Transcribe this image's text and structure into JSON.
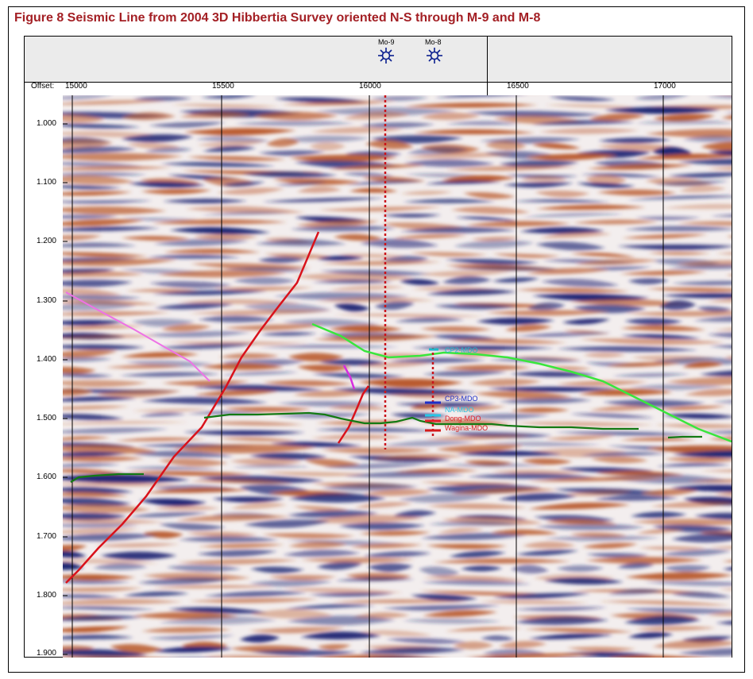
{
  "title": "Figure 8 Seismic Line from 2004 3D Hibbertia Survey oriented N-S through M-9 and M-8",
  "axis": {
    "offset_label": "Offset:",
    "x_ticks": [
      "15000",
      "15500",
      "16000",
      "16500",
      "17000"
    ],
    "y_ticks": [
      "1.000",
      "1.100",
      "1.200",
      "1.300",
      "1.400",
      "1.500",
      "1.600",
      "1.700",
      "1.800",
      "1.900"
    ]
  },
  "wells": [
    {
      "name": "Mo-9",
      "icon": "well-symbol-icon"
    },
    {
      "name": "Mo-8",
      "icon": "well-symbol-icon"
    }
  ],
  "markers": [
    {
      "label": "CP2-MDO",
      "color": "#1fb6c9"
    },
    {
      "label": "CP3-MDO",
      "color": "#1d2fc9"
    },
    {
      "label": "NA-MDO",
      "color": "#27c6e6"
    },
    {
      "label": "Dong-MDO",
      "color": "#e0202a"
    },
    {
      "label": "Wagina-MDO",
      "color": "#d41a1a"
    }
  ],
  "colors": {
    "title": "#a31f24",
    "positive_amplitude": "#b9582a",
    "negative_amplitude": "#1c2473",
    "fault": "#d9121b",
    "horizon_bright": "#39e63c",
    "horizon_dark": "#137a13",
    "horizon_pink": "#ee72e6",
    "well_trace": "#c9141b"
  }
}
